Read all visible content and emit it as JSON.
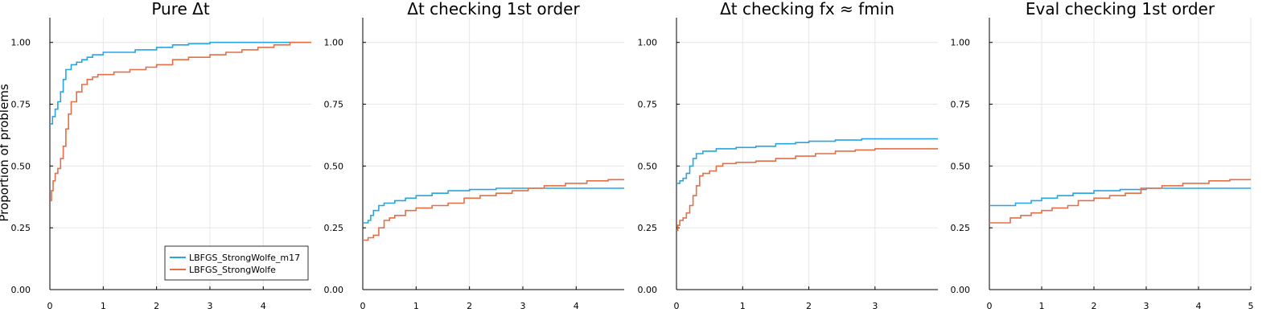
{
  "figure": {
    "ylabel": "Proportion of problems"
  },
  "chart_data": [
    {
      "type": "line",
      "step": true,
      "title": "Pure Δt",
      "xlim": [
        0,
        4.9
      ],
      "ylim": [
        0,
        1.1
      ],
      "xticks": [
        0,
        1,
        2,
        3,
        4
      ],
      "yticks": [
        0.0,
        0.25,
        0.5,
        0.75,
        1.0
      ],
      "legend": "bottom-right",
      "series": [
        {
          "name": "LBFGS_StrongWolfe_m17",
          "color": "#27a5e3",
          "points": [
            [
              0,
              0.67
            ],
            [
              0.05,
              0.7
            ],
            [
              0.1,
              0.73
            ],
            [
              0.15,
              0.76
            ],
            [
              0.2,
              0.8
            ],
            [
              0.25,
              0.85
            ],
            [
              0.3,
              0.89
            ],
            [
              0.4,
              0.91
            ],
            [
              0.5,
              0.92
            ],
            [
              0.6,
              0.93
            ],
            [
              0.7,
              0.94
            ],
            [
              0.8,
              0.95
            ],
            [
              1.0,
              0.96
            ],
            [
              1.3,
              0.96
            ],
            [
              1.6,
              0.97
            ],
            [
              2.0,
              0.98
            ],
            [
              2.3,
              0.99
            ],
            [
              2.6,
              0.995
            ],
            [
              3.0,
              1.0
            ],
            [
              4.9,
              1.0
            ]
          ]
        },
        {
          "name": "LBFGS_StrongWolfe",
          "color": "#e36f47",
          "points": [
            [
              0,
              0.36
            ],
            [
              0.03,
              0.4
            ],
            [
              0.06,
              0.44
            ],
            [
              0.1,
              0.47
            ],
            [
              0.15,
              0.49
            ],
            [
              0.2,
              0.53
            ],
            [
              0.25,
              0.58
            ],
            [
              0.3,
              0.65
            ],
            [
              0.35,
              0.71
            ],
            [
              0.4,
              0.76
            ],
            [
              0.5,
              0.8
            ],
            [
              0.6,
              0.83
            ],
            [
              0.7,
              0.85
            ],
            [
              0.8,
              0.86
            ],
            [
              0.9,
              0.87
            ],
            [
              1.0,
              0.87
            ],
            [
              1.2,
              0.88
            ],
            [
              1.5,
              0.89
            ],
            [
              1.8,
              0.9
            ],
            [
              2.0,
              0.91
            ],
            [
              2.3,
              0.93
            ],
            [
              2.6,
              0.94
            ],
            [
              3.0,
              0.95
            ],
            [
              3.3,
              0.96
            ],
            [
              3.6,
              0.97
            ],
            [
              3.9,
              0.98
            ],
            [
              4.2,
              0.99
            ],
            [
              4.5,
              1.0
            ],
            [
              4.9,
              1.0
            ]
          ]
        }
      ]
    },
    {
      "type": "line",
      "step": true,
      "title": "Δt checking 1st order",
      "xlim": [
        0,
        4.9
      ],
      "ylim": [
        0,
        1.1
      ],
      "xticks": [
        0,
        1,
        2,
        3,
        4
      ],
      "yticks": [
        0.0,
        0.25,
        0.5,
        0.75,
        1.0
      ],
      "series": [
        {
          "color": "#27a5e3",
          "points": [
            [
              0,
              0.27
            ],
            [
              0.1,
              0.28
            ],
            [
              0.15,
              0.3
            ],
            [
              0.2,
              0.32
            ],
            [
              0.3,
              0.34
            ],
            [
              0.4,
              0.35
            ],
            [
              0.6,
              0.36
            ],
            [
              0.8,
              0.37
            ],
            [
              1.0,
              0.38
            ],
            [
              1.3,
              0.39
            ],
            [
              1.6,
              0.4
            ],
            [
              2.0,
              0.405
            ],
            [
              2.5,
              0.41
            ],
            [
              4.9,
              0.41
            ]
          ]
        },
        {
          "color": "#e36f47",
          "points": [
            [
              0,
              0.2
            ],
            [
              0.1,
              0.21
            ],
            [
              0.2,
              0.22
            ],
            [
              0.3,
              0.25
            ],
            [
              0.4,
              0.28
            ],
            [
              0.5,
              0.29
            ],
            [
              0.6,
              0.3
            ],
            [
              0.8,
              0.32
            ],
            [
              1.0,
              0.33
            ],
            [
              1.3,
              0.34
            ],
            [
              1.6,
              0.35
            ],
            [
              1.9,
              0.37
            ],
            [
              2.2,
              0.38
            ],
            [
              2.5,
              0.39
            ],
            [
              2.8,
              0.4
            ],
            [
              3.1,
              0.41
            ],
            [
              3.4,
              0.42
            ],
            [
              3.8,
              0.43
            ],
            [
              4.2,
              0.44
            ],
            [
              4.6,
              0.445
            ],
            [
              4.9,
              0.445
            ]
          ]
        }
      ]
    },
    {
      "type": "line",
      "step": true,
      "title": "Δt checking fx ≈ fmin",
      "xlim": [
        0,
        3.95
      ],
      "ylim": [
        0,
        1.1
      ],
      "xticks": [
        0,
        1,
        2,
        3
      ],
      "yticks": [
        0.0,
        0.25,
        0.5,
        0.75,
        1.0
      ],
      "series": [
        {
          "color": "#27a5e3",
          "points": [
            [
              0,
              0.43
            ],
            [
              0.05,
              0.44
            ],
            [
              0.1,
              0.45
            ],
            [
              0.15,
              0.47
            ],
            [
              0.2,
              0.5
            ],
            [
              0.25,
              0.53
            ],
            [
              0.3,
              0.55
            ],
            [
              0.4,
              0.56
            ],
            [
              0.6,
              0.57
            ],
            [
              0.9,
              0.575
            ],
            [
              1.2,
              0.58
            ],
            [
              1.5,
              0.59
            ],
            [
              1.8,
              0.595
            ],
            [
              2.0,
              0.6
            ],
            [
              2.4,
              0.605
            ],
            [
              2.8,
              0.61
            ],
            [
              3.95,
              0.61
            ]
          ]
        },
        {
          "color": "#e36f47",
          "points": [
            [
              0,
              0.24
            ],
            [
              0.02,
              0.26
            ],
            [
              0.05,
              0.28
            ],
            [
              0.1,
              0.29
            ],
            [
              0.15,
              0.31
            ],
            [
              0.2,
              0.34
            ],
            [
              0.25,
              0.38
            ],
            [
              0.3,
              0.42
            ],
            [
              0.35,
              0.46
            ],
            [
              0.4,
              0.47
            ],
            [
              0.5,
              0.48
            ],
            [
              0.6,
              0.5
            ],
            [
              0.7,
              0.51
            ],
            [
              0.9,
              0.515
            ],
            [
              1.2,
              0.52
            ],
            [
              1.5,
              0.53
            ],
            [
              1.8,
              0.54
            ],
            [
              2.1,
              0.55
            ],
            [
              2.4,
              0.56
            ],
            [
              2.7,
              0.565
            ],
            [
              3.0,
              0.57
            ],
            [
              3.95,
              0.57
            ]
          ]
        }
      ]
    },
    {
      "type": "line",
      "step": true,
      "title": "Eval checking 1st order",
      "xlim": [
        0,
        5
      ],
      "ylim": [
        0,
        1.1
      ],
      "xticks": [
        0,
        1,
        2,
        3,
        4,
        5
      ],
      "yticks": [
        0.0,
        0.25,
        0.5,
        0.75,
        1.0
      ],
      "series": [
        {
          "color": "#27a5e3",
          "points": [
            [
              0,
              0.34
            ],
            [
              0.5,
              0.35
            ],
            [
              0.8,
              0.36
            ],
            [
              1.0,
              0.37
            ],
            [
              1.3,
              0.38
            ],
            [
              1.6,
              0.39
            ],
            [
              2.0,
              0.4
            ],
            [
              2.5,
              0.405
            ],
            [
              3.0,
              0.41
            ],
            [
              5,
              0.41
            ]
          ]
        },
        {
          "color": "#e36f47",
          "points": [
            [
              0,
              0.27
            ],
            [
              0.3,
              0.27
            ],
            [
              0.4,
              0.29
            ],
            [
              0.6,
              0.3
            ],
            [
              0.8,
              0.31
            ],
            [
              1.0,
              0.32
            ],
            [
              1.2,
              0.33
            ],
            [
              1.5,
              0.34
            ],
            [
              1.7,
              0.36
            ],
            [
              2.0,
              0.37
            ],
            [
              2.3,
              0.38
            ],
            [
              2.6,
              0.39
            ],
            [
              2.9,
              0.41
            ],
            [
              3.3,
              0.42
            ],
            [
              3.7,
              0.43
            ],
            [
              4.2,
              0.44
            ],
            [
              4.6,
              0.445
            ],
            [
              5,
              0.445
            ]
          ]
        }
      ]
    }
  ]
}
